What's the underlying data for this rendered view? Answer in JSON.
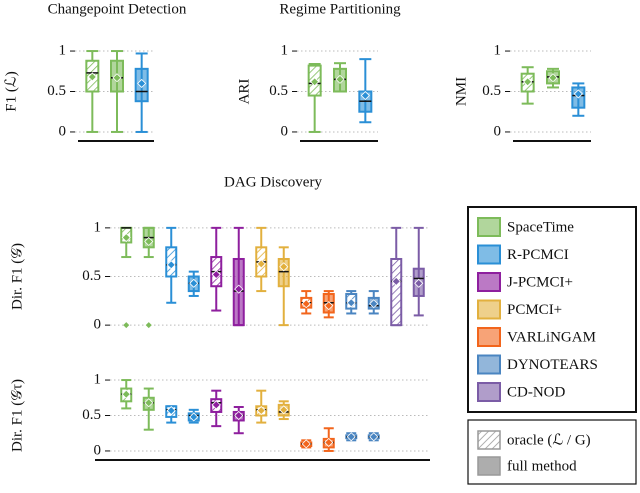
{
  "chart_data": [
    {
      "type": "box",
      "title": "Changepoint Detection",
      "ylabel": "F1 (ℒ)",
      "ylim": [
        -0.05,
        1.05
      ],
      "yticks": [
        0,
        0.5,
        1
      ],
      "grid": true,
      "series": [
        {
          "color": "#7dbb5a",
          "oracle": {
            "low": 0,
            "q1": 0.5,
            "median": 0.73,
            "q3": 0.88,
            "high": 1,
            "mean": 0.68
          },
          "full": {
            "low": 0,
            "q1": 0.5,
            "median": 0.67,
            "q3": 0.88,
            "high": 1,
            "mean": 0.67
          }
        },
        {
          "color": "#2a8fd6",
          "full": {
            "low": 0,
            "q1": 0.38,
            "median": 0.5,
            "q3": 0.78,
            "high": 0.97,
            "mean": 0.6
          }
        }
      ]
    },
    {
      "type": "box",
      "title": "Regime Partitioning",
      "ylabel": "ARI",
      "ylim": [
        -0.05,
        1.05
      ],
      "yticks": [
        0,
        0.5,
        1
      ],
      "grid": true,
      "series": [
        {
          "color": "#7dbb5a",
          "oracle": {
            "low": 0,
            "q1": 0.45,
            "median": 0.6,
            "q3": 0.82,
            "high": 0.84,
            "mean": 0.62
          },
          "full": {
            "low": 0.5,
            "q1": 0.5,
            "median": 0.65,
            "q3": 0.78,
            "high": 0.85,
            "mean": 0.65
          }
        },
        {
          "color": "#2a8fd6",
          "full": {
            "low": 0.12,
            "q1": 0.25,
            "median": 0.38,
            "q3": 0.5,
            "high": 0.9,
            "mean": 0.45
          }
        }
      ]
    },
    {
      "type": "box",
      "ylabel": "NMI",
      "ylim": [
        -0.05,
        1.05
      ],
      "yticks": [
        0,
        0.5,
        1
      ],
      "grid": true,
      "series": [
        {
          "color": "#7dbb5a",
          "oracle": {
            "low": 0.35,
            "q1": 0.5,
            "median": 0.62,
            "q3": 0.72,
            "high": 0.8,
            "mean": 0.62
          },
          "full": {
            "low": 0.55,
            "q1": 0.6,
            "median": 0.68,
            "q3": 0.75,
            "high": 0.78,
            "mean": 0.67
          }
        },
        {
          "color": "#2a8fd6",
          "full": {
            "low": 0.2,
            "q1": 0.3,
            "median": 0.45,
            "q3": 0.55,
            "high": 0.6,
            "mean": 0.47
          }
        }
      ]
    },
    {
      "type": "box",
      "title": "DAG Discovery",
      "ylabel": "Dir. F1 (𝒢)",
      "ylim": [
        -0.05,
        1.05
      ],
      "yticks": [
        0,
        0.5,
        1
      ],
      "grid": true,
      "legend": {
        "oracle": "oracle (ℒ / G)",
        "full": "full method"
      },
      "series": [
        {
          "name": "SpaceTime",
          "color": "#7dbb5a",
          "oracle": {
            "low": 0.7,
            "q1": 0.85,
            "median": 1,
            "q3": 1,
            "high": 1,
            "mean": 0.9,
            "outliers": [
              0
            ]
          },
          "full": {
            "low": 0.7,
            "q1": 0.8,
            "median": 0.9,
            "q3": 1,
            "high": 1,
            "mean": 0.86,
            "outliers": [
              0
            ]
          }
        },
        {
          "name": "R-PCMCI",
          "color": "#2a8fd6",
          "oracle": {
            "low": 0.23,
            "q1": 0.5,
            "median": 0.62,
            "q3": 0.8,
            "high": 1,
            "mean": 0.62
          },
          "full": {
            "low": 0.3,
            "q1": 0.35,
            "median": 0.43,
            "q3": 0.5,
            "high": 0.55,
            "mean": 0.43
          }
        },
        {
          "name": "J-PCMCI+",
          "color": "#8e1f9e",
          "oracle": {
            "low": 0.15,
            "q1": 0.4,
            "median": 0.55,
            "q3": 0.7,
            "high": 1,
            "mean": 0.52
          },
          "full": {
            "low": 0,
            "q1": 0,
            "median": 0.35,
            "q3": 0.68,
            "high": 1,
            "mean": 0.37
          }
        },
        {
          "name": "PCMCI+",
          "color": "#e2b03e",
          "oracle": {
            "low": 0.35,
            "q1": 0.5,
            "median": 0.65,
            "q3": 0.8,
            "high": 1,
            "mean": 0.63
          },
          "full": {
            "low": 0,
            "q1": 0.4,
            "median": 0.55,
            "q3": 0.68,
            "high": 0.8,
            "mean": 0.6
          }
        },
        {
          "name": "VARLiNGAM",
          "color": "#f2651c",
          "oracle": {
            "low": 0.12,
            "q1": 0.18,
            "median": 0.23,
            "q3": 0.28,
            "high": 0.35,
            "mean": 0.22
          },
          "full": {
            "low": 0.08,
            "q1": 0.13,
            "median": 0.23,
            "q3": 0.32,
            "high": 0.35,
            "mean": 0.2
          }
        },
        {
          "name": "DYNOTEARS",
          "color": "#4a85c1",
          "oracle": {
            "low": 0.12,
            "q1": 0.17,
            "median": 0.23,
            "q3": 0.32,
            "high": 0.35,
            "mean": 0.23
          },
          "full": {
            "low": 0.12,
            "q1": 0.17,
            "median": 0.2,
            "q3": 0.28,
            "high": 0.35,
            "mean": 0.22
          }
        },
        {
          "name": "CD-NOD",
          "color": "#7b5ca6",
          "oracle": {
            "low": 0,
            "q1": 0,
            "median": 0.45,
            "q3": 0.68,
            "high": 1,
            "mean": 0.45
          },
          "full": {
            "low": 0.1,
            "q1": 0.3,
            "median": 0.48,
            "q3": 0.58,
            "high": 1,
            "mean": 0.43
          }
        }
      ]
    },
    {
      "type": "box",
      "ylabel": "Dir. F1 (𝒢τ)",
      "ylim": [
        -0.05,
        1.05
      ],
      "yticks": [
        0,
        0.5,
        1
      ],
      "grid": true,
      "series": [
        {
          "color": "#7dbb5a",
          "oracle": {
            "low": 0.6,
            "q1": 0.7,
            "median": 0.8,
            "q3": 0.88,
            "high": 1,
            "mean": 0.8
          },
          "full": {
            "low": 0.3,
            "q1": 0.58,
            "median": 0.68,
            "q3": 0.75,
            "high": 0.88,
            "mean": 0.68
          }
        },
        {
          "color": "#2a8fd6",
          "oracle": {
            "low": 0.4,
            "q1": 0.48,
            "median": 0.58,
            "q3": 0.63,
            "high": 0.63,
            "mean": 0.57
          },
          "full": {
            "low": 0.4,
            "q1": 0.43,
            "median": 0.5,
            "q3": 0.53,
            "high": 0.58,
            "mean": 0.48
          }
        },
        {
          "color": "#8e1f9e",
          "oracle": {
            "low": 0.35,
            "q1": 0.55,
            "median": 0.68,
            "q3": 0.73,
            "high": 0.85,
            "mean": 0.65
          },
          "full": {
            "low": 0.25,
            "q1": 0.43,
            "median": 0.5,
            "q3": 0.55,
            "high": 0.62,
            "mean": 0.5
          }
        },
        {
          "color": "#e2b03e",
          "oracle": {
            "low": 0.4,
            "q1": 0.5,
            "median": 0.58,
            "q3": 0.63,
            "high": 0.85,
            "mean": 0.57
          },
          "full": {
            "low": 0.45,
            "q1": 0.5,
            "median": 0.55,
            "q3": 0.65,
            "high": 0.7,
            "mean": 0.58
          }
        },
        {
          "color": "#f2651c",
          "oracle": {
            "low": 0.05,
            "q1": 0.07,
            "median": 0.1,
            "q3": 0.12,
            "high": 0.15,
            "mean": 0.1
          },
          "full": {
            "low": 0,
            "q1": 0.05,
            "median": 0.12,
            "q3": 0.17,
            "high": 0.32,
            "mean": 0.12
          }
        },
        {
          "color": "#4a85c1",
          "oracle": {
            "low": 0.15,
            "q1": 0.18,
            "median": 0.2,
            "q3": 0.22,
            "high": 0.25,
            "mean": 0.2
          },
          "full": {
            "low": 0.15,
            "q1": 0.18,
            "median": 0.2,
            "q3": 0.22,
            "high": 0.25,
            "mean": 0.2
          }
        }
      ]
    }
  ]
}
